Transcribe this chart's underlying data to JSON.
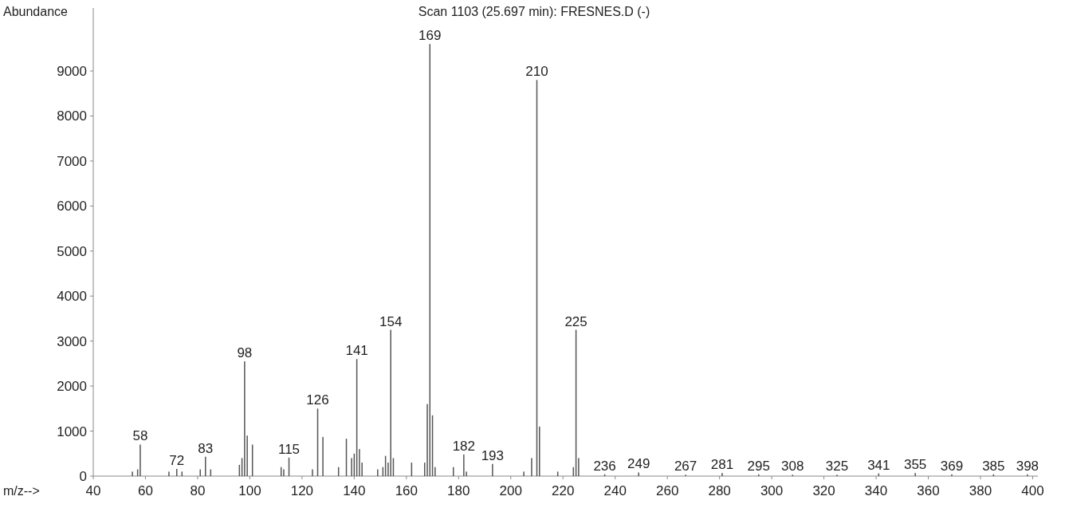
{
  "chart_data": {
    "type": "bar",
    "title": "Scan 1103 (25.697 min): FRESNES.D (-)",
    "ylabel": "Abundance",
    "xlabel": "m/z-->",
    "x": [
      55,
      57,
      58,
      69,
      72,
      74,
      81,
      83,
      85,
      96,
      97,
      98,
      99,
      101,
      112,
      113,
      115,
      124,
      126,
      128,
      134,
      137,
      139,
      140,
      141,
      142,
      143,
      149,
      151,
      152,
      153,
      154,
      155,
      162,
      167,
      168,
      169,
      170,
      171,
      178,
      182,
      183,
      193,
      205,
      208,
      210,
      211,
      218,
      224,
      225,
      226,
      236,
      249,
      267,
      281,
      295,
      308,
      325,
      341,
      355,
      369,
      385,
      398
    ],
    "series": [
      {
        "color": "#555555",
        "values": [
          100,
          150,
          700,
          100,
          160,
          100,
          150,
          430,
          150,
          250,
          400,
          2550,
          900,
          700,
          200,
          150,
          410,
          150,
          1500,
          870,
          200,
          830,
          400,
          500,
          2600,
          600,
          300,
          150,
          200,
          450,
          300,
          3250,
          400,
          300,
          300,
          1600,
          9600,
          1350,
          200,
          200,
          480,
          100,
          270,
          100,
          400,
          8800,
          1100,
          100,
          200,
          3250,
          400,
          40,
          80,
          30,
          70,
          40,
          30,
          30,
          60,
          70,
          40,
          40,
          40
        ]
      }
    ],
    "annotations": [
      {
        "text": "58",
        "x": 58,
        "y": 700
      },
      {
        "text": "72",
        "x": 72,
        "y": 160
      },
      {
        "text": "83",
        "x": 83,
        "y": 430
      },
      {
        "text": "98",
        "x": 98,
        "y": 2550
      },
      {
        "text": "115",
        "x": 115,
        "y": 410
      },
      {
        "text": "126",
        "x": 126,
        "y": 1500
      },
      {
        "text": "141",
        "x": 141,
        "y": 2600
      },
      {
        "text": "154",
        "x": 154,
        "y": 3250
      },
      {
        "text": "169",
        "x": 169,
        "y": 9600
      },
      {
        "text": "182",
        "x": 182,
        "y": 480
      },
      {
        "text": "193",
        "x": 193,
        "y": 270
      },
      {
        "text": "210",
        "x": 210,
        "y": 8800
      },
      {
        "text": "225",
        "x": 225,
        "y": 3250
      },
      {
        "text": "236",
        "x": 236,
        "y": 40
      },
      {
        "text": "249",
        "x": 249,
        "y": 80
      },
      {
        "text": "267",
        "x": 267,
        "y": 30
      },
      {
        "text": "281",
        "x": 281,
        "y": 70
      },
      {
        "text": "295",
        "x": 295,
        "y": 40
      },
      {
        "text": "308",
        "x": 308,
        "y": 30
      },
      {
        "text": "325",
        "x": 325,
        "y": 30
      },
      {
        "text": "341",
        "x": 341,
        "y": 60
      },
      {
        "text": "355",
        "x": 355,
        "y": 70
      },
      {
        "text": "369",
        "x": 369,
        "y": 40
      },
      {
        "text": "385",
        "x": 385,
        "y": 40
      },
      {
        "text": "398",
        "x": 398,
        "y": 40
      }
    ],
    "xlim": [
      40,
      402
    ],
    "xticks": [
      40,
      60,
      80,
      100,
      120,
      140,
      160,
      180,
      200,
      220,
      240,
      260,
      280,
      300,
      320,
      340,
      360,
      380,
      400
    ],
    "ylim": [
      0,
      10400
    ],
    "yticks": [
      0,
      1000,
      2000,
      3000,
      4000,
      5000,
      6000,
      7000,
      8000,
      9000
    ],
    "grid": false
  }
}
